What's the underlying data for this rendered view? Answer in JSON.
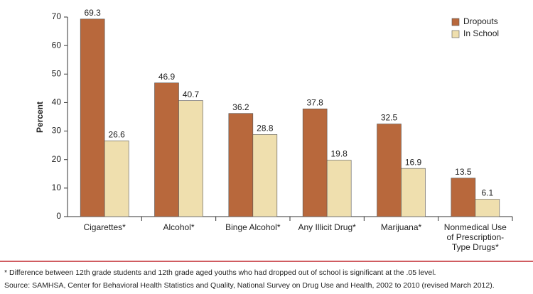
{
  "chart_data": {
    "type": "bar",
    "ylabel": "Percent",
    "categories": [
      "Cigarettes*",
      "Alcohol*",
      "Binge Alcohol*",
      "Any Illicit Drug*",
      "Marijuana*",
      "Nonmedical Use of Prescription-Type Drugs*"
    ],
    "series": [
      {
        "name": "Dropouts",
        "color": "#b8683c",
        "values": [
          69.3,
          46.9,
          36.2,
          37.8,
          32.5,
          13.5
        ]
      },
      {
        "name": "In School",
        "color": "#efdfae",
        "values": [
          26.6,
          40.7,
          28.8,
          19.8,
          16.9,
          6.1
        ]
      }
    ],
    "ylim": [
      0,
      70
    ],
    "yticks": [
      0,
      10,
      20,
      30,
      40,
      50,
      60,
      70
    ],
    "legend": "top-right",
    "notes": [
      "* Difference between 12th grade students and 12th grade aged youths who had dropped out of school is significant at the .05 level.",
      "Source: SAMHSA, Center for Behavioral Health Statistics and Quality, National Survey on Drug Use and Health, 2002 to 2010 (revised March 2012)."
    ]
  }
}
